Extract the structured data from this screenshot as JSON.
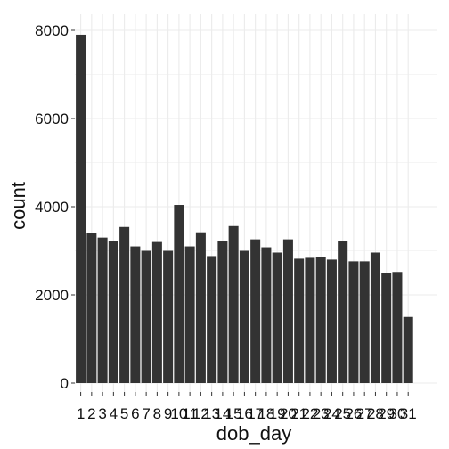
{
  "chart_data": {
    "type": "bar",
    "xlabel": "dob_day",
    "ylabel": "count",
    "categories": [
      "1",
      "2",
      "3",
      "4",
      "5",
      "6",
      "7",
      "8",
      "9",
      "10",
      "11",
      "12",
      "13",
      "14",
      "15",
      "16",
      "17",
      "18",
      "19",
      "20",
      "21",
      "22",
      "23",
      "24",
      "25",
      "26",
      "27",
      "28",
      "29",
      "30",
      "31"
    ],
    "values": [
      7900,
      3400,
      3300,
      3220,
      3540,
      3100,
      3000,
      3200,
      3000,
      4040,
      3100,
      3420,
      2880,
      3220,
      3560,
      3000,
      3260,
      3080,
      2960,
      3260,
      2820,
      2840,
      2860,
      2800,
      3220,
      2760,
      2760,
      2960,
      2500,
      2520,
      1500
    ],
    "ylim": [
      0,
      8250
    ],
    "yticks": [
      0,
      2000,
      4000,
      6000,
      8000
    ],
    "ytick_labels": [
      "0",
      "2000",
      "4000",
      "6000",
      "8000"
    ],
    "grid": true,
    "bar_color": "#333333",
    "grid_color": "#ebebeb"
  }
}
